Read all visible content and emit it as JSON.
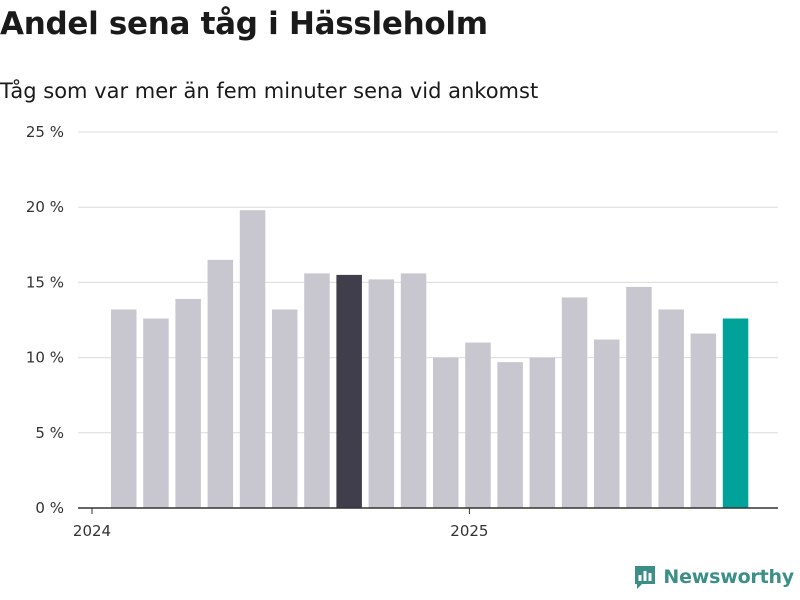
{
  "title": "Andel sena tåg i Hässleholm",
  "subtitle": "Tåg som var mer än fem minuter sena vid ankomst",
  "brand": {
    "name": "Newsworthy",
    "color": "#3b8f86",
    "icon": "newsworthy-logo-icon"
  },
  "colors": {
    "default": "#c8c7cf",
    "highlight_dark": "#3f3e4a",
    "highlight_latest": "#00a29a",
    "grid": "#dcdcdc",
    "axis": "#333333"
  },
  "chart_data": {
    "type": "bar",
    "title": "Andel sena tåg i Hässleholm",
    "subtitle": "Tåg som var mer än fem minuter sena vid ankomst",
    "xlabel": "",
    "ylabel": "",
    "ylim": [
      0,
      25
    ],
    "yticks": [
      0,
      5,
      10,
      15,
      20,
      25
    ],
    "ytick_labels": [
      "0 %",
      "5 %",
      "10 %",
      "15 %",
      "20 %",
      "25 %"
    ],
    "xtick_labels": [
      {
        "label": "2024",
        "at_index": 0
      },
      {
        "label": "2025",
        "at_index": 12
      }
    ],
    "grid": true,
    "categories": [
      "2024-01",
      "2024-02",
      "2024-03",
      "2024-04",
      "2024-05",
      "2024-06",
      "2024-07",
      "2024-08",
      "2024-09",
      "2024-10",
      "2024-11",
      "2024-12",
      "2025-01",
      "2025-02",
      "2025-03",
      "2025-04",
      "2025-05",
      "2025-06",
      "2025-07",
      "2025-08"
    ],
    "values": [
      13.2,
      12.6,
      13.9,
      16.5,
      19.8,
      13.2,
      15.6,
      15.5,
      15.2,
      15.6,
      10.0,
      11.0,
      9.7,
      10.0,
      14.0,
      11.2,
      14.7,
      13.2,
      11.6,
      12.6
    ],
    "highlights": {
      "7": "highlight_dark",
      "19": "highlight_latest"
    }
  }
}
